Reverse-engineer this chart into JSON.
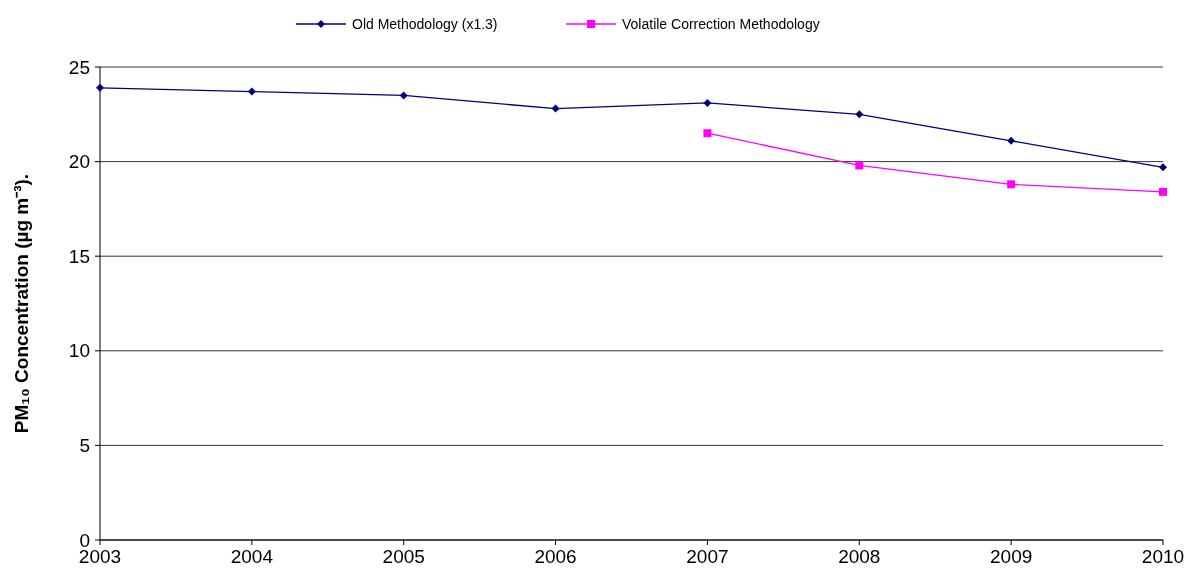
{
  "chart_data": {
    "type": "line",
    "ylabel": "PM₁₀ Concentration (µg m⁻³).",
    "x": [
      2003,
      2004,
      2005,
      2006,
      2007,
      2008,
      2009,
      2010
    ],
    "xlim": [
      2003,
      2010
    ],
    "xticks": [
      2003,
      2004,
      2005,
      2006,
      2007,
      2008,
      2009,
      2010
    ],
    "ylim": [
      0,
      25
    ],
    "yticks": [
      0,
      5,
      10,
      15,
      20,
      25
    ],
    "grid": "y",
    "legend": "top",
    "series": [
      {
        "name": "Old Methodology (x1.3)",
        "color": "#000080",
        "marker": "diamond",
        "values": [
          23.9,
          23.7,
          23.5,
          22.8,
          23.1,
          22.5,
          21.1,
          19.7
        ]
      },
      {
        "name": "Volatile Correction Methodology",
        "color": "#ff00ff",
        "marker": "square",
        "values": [
          null,
          null,
          null,
          null,
          21.5,
          19.8,
          18.8,
          18.4
        ]
      }
    ]
  }
}
